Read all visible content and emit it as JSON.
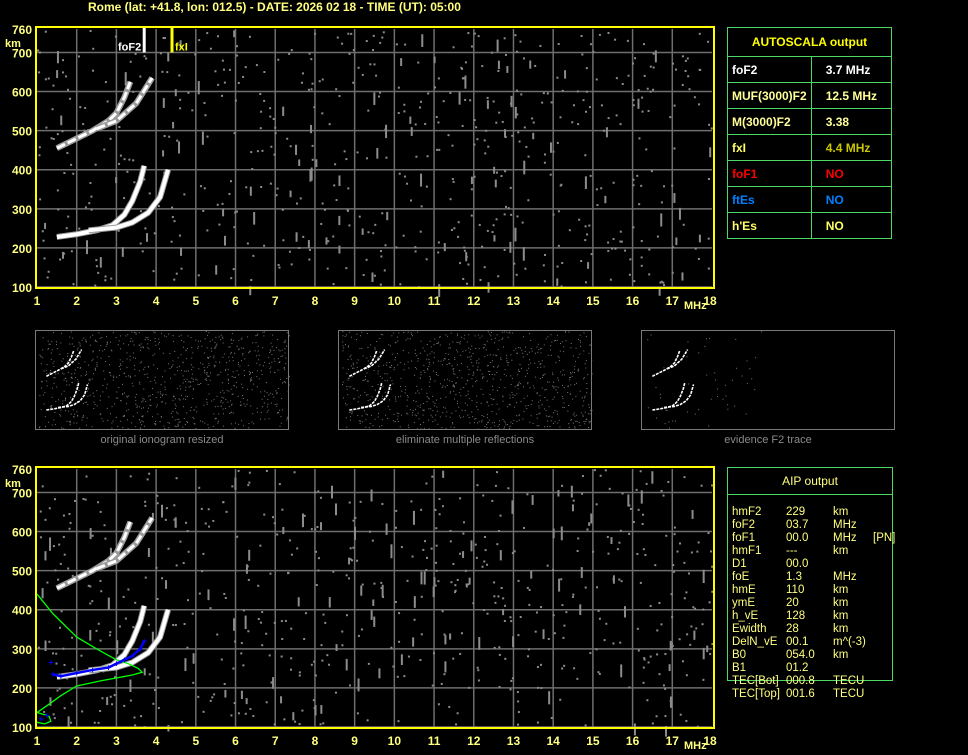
{
  "header": {
    "title": "Rome (lat: +41.8, lon: 012.5) - DATE: 2026 02 18 - TIME (UT): 05:00"
  },
  "colors": {
    "axis": "#ffff00",
    "label": "#ffff80",
    "grid": "#6e6e6e",
    "table_border": "#4cd964",
    "profile": "#00ff00",
    "aip_points": "#0000ff"
  },
  "autoscala": {
    "title": "AUTOSCALA output",
    "rows": [
      {
        "label": "foF2",
        "value": "3.7 MHz",
        "label_color": "#ffffff",
        "value_color": "#ffffff"
      },
      {
        "label": "MUF(3000)F2",
        "value": "12.5 MHz",
        "label_color": "#ffff99",
        "value_color": "#ffff99"
      },
      {
        "label": "M(3000)F2",
        "value": "3.38",
        "label_color": "#ffff99",
        "value_color": "#ffff99"
      },
      {
        "label": "fxI",
        "value": "4.4 MHz",
        "label_color": "#ffff66",
        "value_color": "#c8c800"
      },
      {
        "label": "foF1",
        "value": "NO",
        "label_color": "#ff0000",
        "value_color": "#ff0000"
      },
      {
        "label": "ftEs",
        "value": "NO",
        "label_color": "#0080ff",
        "value_color": "#0080ff"
      },
      {
        "label": "h'Es",
        "value": "NO",
        "label_color": "#ffff66",
        "value_color": "#ffff66"
      }
    ]
  },
  "aip": {
    "title": "AIP output",
    "rows": [
      [
        "hmF2",
        "229",
        "km",
        ""
      ],
      [
        "foF2",
        "03.7",
        "MHz",
        ""
      ],
      [
        "foF1",
        "00.0",
        "MHz",
        "[PN]"
      ],
      [
        "hmF1",
        "---",
        "km",
        ""
      ],
      [
        "D1",
        "00.0",
        "",
        ""
      ],
      [
        "foE",
        "1.3",
        "MHz",
        ""
      ],
      [
        "hmE",
        "110",
        "km",
        ""
      ],
      [
        "ymE",
        "20",
        "km",
        ""
      ],
      [
        "h_vE",
        "128",
        "km",
        ""
      ],
      [
        "Ewidth",
        "28",
        "km",
        ""
      ],
      [
        "DelN_vE",
        "00.1",
        "m^(-3)",
        ""
      ],
      [
        "B0",
        "054.0",
        "km",
        ""
      ],
      [
        "B1",
        "01.2",
        "",
        ""
      ],
      [
        "TEC[Bot]",
        "000.8",
        "TECU",
        ""
      ],
      [
        "TEC[Top]",
        "001.6",
        "TECU",
        ""
      ]
    ]
  },
  "thumbnails": [
    {
      "caption": "original ionogram resized"
    },
    {
      "caption": "eliminate multiple reflections"
    },
    {
      "caption": "evidence F2 trace"
    }
  ],
  "chart_data": {
    "type": "scatter",
    "xlabel": "MHz",
    "ylabel": "km",
    "xlim": [
      1,
      18
    ],
    "ylim": [
      100,
      760
    ],
    "xticks": [
      "1",
      "2",
      "3",
      "4",
      "5",
      "6",
      "7",
      "8",
      "9",
      "10",
      "11",
      "12",
      "13",
      "14",
      "15",
      "16",
      "17",
      "18"
    ],
    "yticks": [
      "100",
      "200",
      "300",
      "400",
      "500",
      "600",
      "700",
      "760"
    ],
    "grid": true,
    "markers": [
      {
        "label": "foF2",
        "x": 3.7,
        "color": "#ffffff"
      },
      {
        "label": "fxI",
        "x": 4.4,
        "color": "#ffff00"
      }
    ],
    "traces": {
      "o_mode": [
        [
          1.5,
          228
        ],
        [
          2.0,
          235
        ],
        [
          2.5,
          245
        ],
        [
          2.9,
          258
        ],
        [
          3.2,
          285
        ],
        [
          3.4,
          320
        ],
        [
          3.6,
          370
        ],
        [
          3.7,
          410
        ]
      ],
      "x_mode": [
        [
          2.3,
          245
        ],
        [
          3.0,
          252
        ],
        [
          3.4,
          265
        ],
        [
          3.8,
          290
        ],
        [
          4.1,
          330
        ],
        [
          4.3,
          400
        ]
      ],
      "o_second_hop": [
        [
          1.5,
          455
        ],
        [
          1.9,
          475
        ],
        [
          2.4,
          500
        ],
        [
          2.8,
          525
        ],
        [
          3.0,
          545
        ],
        [
          3.2,
          585
        ],
        [
          3.35,
          625
        ]
      ],
      "x_second_hop": [
        [
          2.5,
          505
        ],
        [
          3.0,
          525
        ],
        [
          3.5,
          570
        ],
        [
          3.9,
          635
        ]
      ]
    },
    "aip_profile": [
      [
        1,
        440
      ],
      [
        1.4,
        390
      ],
      [
        2,
        330
      ],
      [
        2.5,
        300
      ],
      [
        3,
        272
      ],
      [
        3.3,
        262
      ],
      [
        3.55,
        250
      ],
      [
        3.65,
        240
      ],
      [
        3.4,
        233
      ],
      [
        2.6,
        218
      ],
      [
        2,
        205
      ],
      [
        1.6,
        180
      ],
      [
        1.3,
        158
      ],
      [
        1,
        137
      ],
      [
        1.3,
        128
      ],
      [
        1.35,
        115
      ],
      [
        1.2,
        108
      ],
      [
        1,
        112
      ]
    ],
    "aip_points": [
      [
        1.4,
        235
      ],
      [
        1.6,
        230
      ],
      [
        2.0,
        238
      ],
      [
        2.4,
        246
      ],
      [
        2.8,
        252
      ],
      [
        3.0,
        262
      ],
      [
        3.2,
        272
      ],
      [
        3.4,
        282
      ],
      [
        3.6,
        300
      ],
      [
        3.7,
        320
      ],
      [
        1.35,
        265
      ],
      [
        1.1,
        120
      ],
      [
        1.25,
        130
      ]
    ]
  }
}
